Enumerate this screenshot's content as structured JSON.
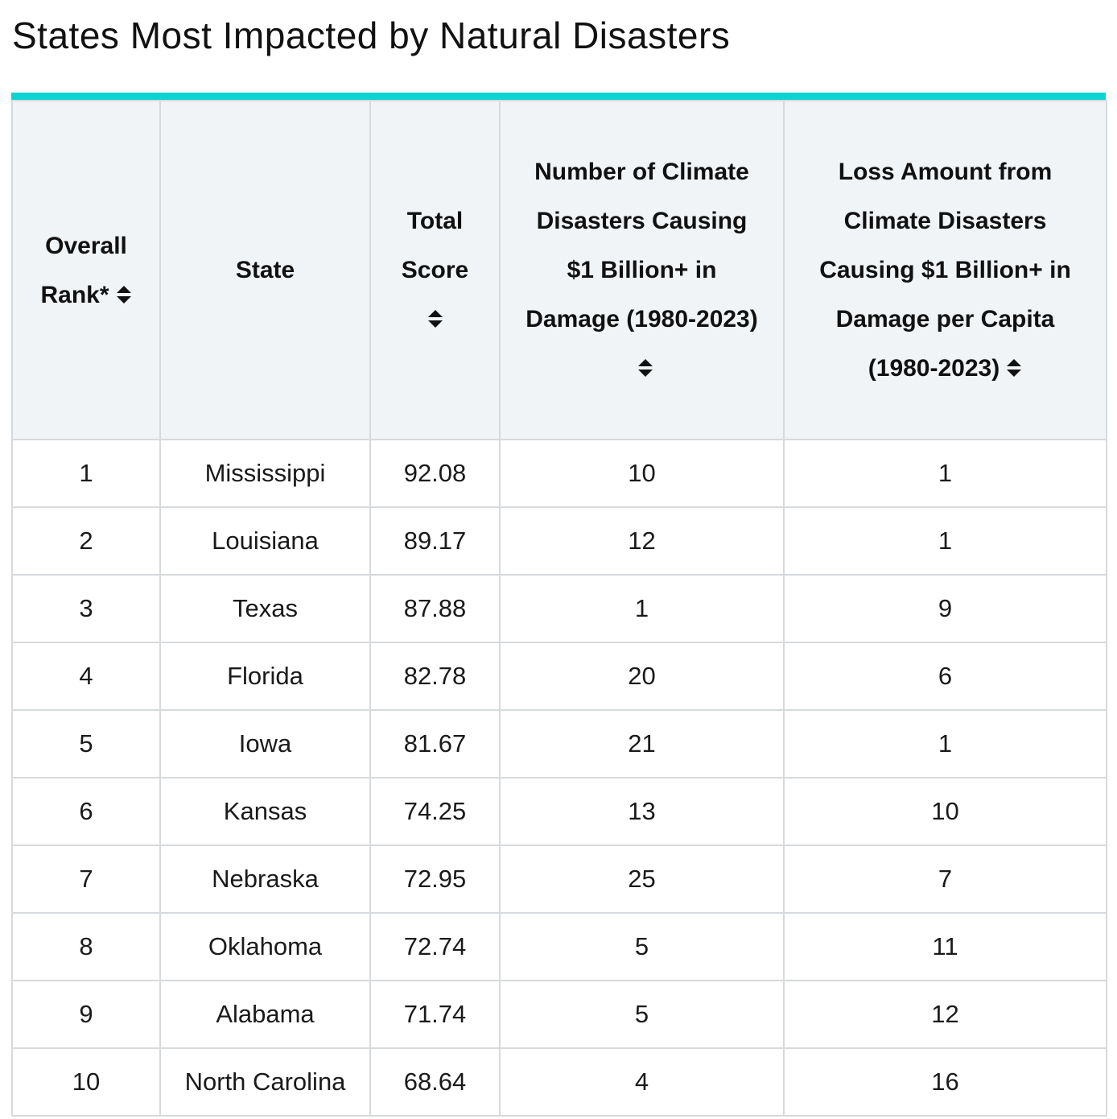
{
  "page": {
    "title": "States Most Impacted by Natural Disasters"
  },
  "colors": {
    "accent": "#0fd3d3",
    "header_bg": "#f0f4f7",
    "border": "#d7dadc"
  },
  "table": {
    "headers": [
      {
        "label": "Overall Rank*",
        "sortable": true,
        "icon": "sort-icon"
      },
      {
        "label": "State",
        "sortable": false
      },
      {
        "label": "Total Score",
        "sortable": true,
        "icon": "sort-icon"
      },
      {
        "label": "Number of Climate Disasters Causing $1 Billion+ in Damage (1980-2023)",
        "sortable": true,
        "icon": "sort-icon"
      },
      {
        "label": "Loss Amount from Climate Disasters Causing $1 Billion+ in Damage per Capita (1980-2023)",
        "sortable": true,
        "icon": "sort-icon"
      }
    ],
    "rows": [
      [
        "1",
        "Mississippi",
        "92.08",
        "10",
        "1"
      ],
      [
        "2",
        "Louisiana",
        "89.17",
        "12",
        "1"
      ],
      [
        "3",
        "Texas",
        "87.88",
        "1",
        "9"
      ],
      [
        "4",
        "Florida",
        "82.78",
        "20",
        "6"
      ],
      [
        "5",
        "Iowa",
        "81.67",
        "21",
        "1"
      ],
      [
        "6",
        "Kansas",
        "74.25",
        "13",
        "10"
      ],
      [
        "7",
        "Nebraska",
        "72.95",
        "25",
        "7"
      ],
      [
        "8",
        "Oklahoma",
        "72.74",
        "5",
        "11"
      ],
      [
        "9",
        "Alabama",
        "71.74",
        "5",
        "12"
      ],
      [
        "10",
        "North Carolina",
        "68.64",
        "4",
        "16"
      ]
    ]
  }
}
